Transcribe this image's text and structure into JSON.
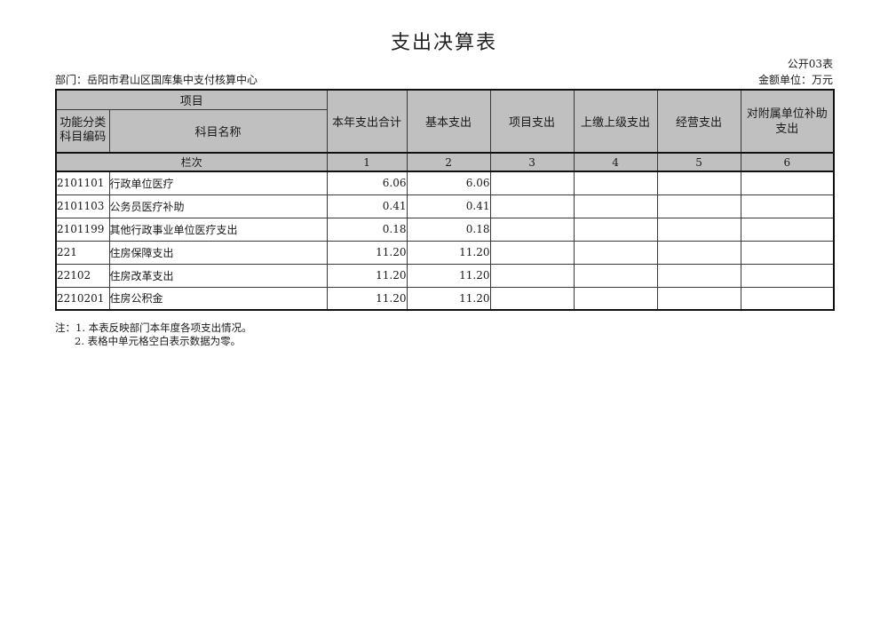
{
  "page": {
    "title": "支出决算表",
    "form_code": "公开03表",
    "department_label": "部门：岳阳市君山区国库集中支付核算中心",
    "unit_label": "金额单位：万元"
  },
  "table": {
    "header": {
      "project_group": "项目",
      "code_label": "功能分类\n科目编码",
      "subject_name": "科目名称",
      "columns": [
        "本年支出合计",
        "基本支出",
        "项目支出",
        "上缴上级支出",
        "经营支出",
        "对附属单位补助支出"
      ],
      "row_index_label": "栏次",
      "column_indices": [
        "1",
        "2",
        "3",
        "4",
        "5",
        "6"
      ]
    },
    "rows": [
      {
        "code": "2101101",
        "name": "行政单位医疗",
        "total": "6.06",
        "basic": "6.06",
        "project": "",
        "upper": "",
        "operating": "",
        "subsidy": ""
      },
      {
        "code": "2101103",
        "name": "公务员医疗补助",
        "total": "0.41",
        "basic": "0.41",
        "project": "",
        "upper": "",
        "operating": "",
        "subsidy": ""
      },
      {
        "code": "2101199",
        "name": "其他行政事业单位医疗支出",
        "total": "0.18",
        "basic": "0.18",
        "project": "",
        "upper": "",
        "operating": "",
        "subsidy": ""
      },
      {
        "code": "221",
        "name": "住房保障支出",
        "total": "11.20",
        "basic": "11.20",
        "project": "",
        "upper": "",
        "operating": "",
        "subsidy": ""
      },
      {
        "code": "22102",
        "name": "住房改革支出",
        "total": "11.20",
        "basic": "11.20",
        "project": "",
        "upper": "",
        "operating": "",
        "subsidy": ""
      },
      {
        "code": "2210201",
        "name": "住房公积金",
        "total": "11.20",
        "basic": "11.20",
        "project": "",
        "upper": "",
        "operating": "",
        "subsidy": ""
      }
    ],
    "notes": {
      "line1": "注：1. 本表反映部门本年度各项支出情况。",
      "line2": "2. 表格中单元格空白表示数据为零。"
    }
  },
  "colors": {
    "header_bg": "#c0c0c0",
    "border": "#333333",
    "page_bg": "#ffffff"
  }
}
